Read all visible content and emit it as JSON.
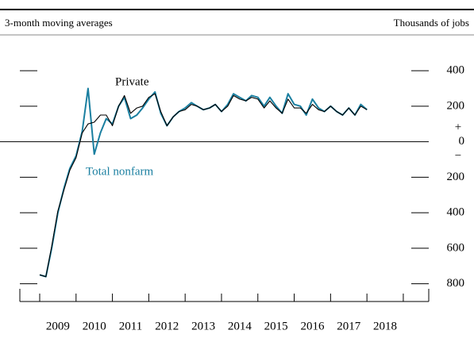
{
  "chart_data": {
    "type": "line",
    "subtitle": "3-month moving averages",
    "y_axis_label": "Thousands of jobs",
    "annotations": [
      "Private",
      "Total nonfarm"
    ],
    "sign_labels": [
      "+",
      "−"
    ],
    "x": [
      2009,
      2009.17,
      2009.33,
      2009.5,
      2009.67,
      2009.83,
      2010,
      2010.17,
      2010.33,
      2010.5,
      2010.67,
      2010.83,
      2011,
      2011.17,
      2011.33,
      2011.5,
      2011.67,
      2011.83,
      2012,
      2012.17,
      2012.33,
      2012.5,
      2012.67,
      2012.83,
      2013,
      2013.17,
      2013.33,
      2013.5,
      2013.67,
      2013.83,
      2014,
      2014.17,
      2014.33,
      2014.5,
      2014.67,
      2014.83,
      2015,
      2015.17,
      2015.33,
      2015.5,
      2015.67,
      2015.83,
      2016,
      2016.17,
      2016.33,
      2016.5,
      2016.67,
      2016.83,
      2017,
      2017.17,
      2017.33,
      2017.5,
      2017.67,
      2017.83,
      2018
    ],
    "series": [
      {
        "name": "Total nonfarm",
        "color": "#1a7fa0",
        "values": [
          -750,
          -760,
          -600,
          -400,
          -260,
          -150,
          -80,
          60,
          300,
          -70,
          50,
          130,
          100,
          200,
          250,
          130,
          150,
          190,
          240,
          280,
          160,
          90,
          140,
          170,
          190,
          220,
          200,
          180,
          190,
          210,
          170,
          210,
          270,
          250,
          230,
          260,
          250,
          200,
          250,
          200,
          160,
          270,
          210,
          200,
          150,
          240,
          190,
          170,
          200,
          170,
          150,
          190,
          150,
          210,
          180
        ]
      },
      {
        "name": "Private",
        "color": "#000000",
        "values": [
          -750,
          -760,
          -590,
          -390,
          -270,
          -160,
          -90,
          50,
          100,
          110,
          150,
          150,
          90,
          200,
          260,
          160,
          190,
          200,
          250,
          270,
          170,
          90,
          140,
          170,
          180,
          210,
          200,
          180,
          190,
          210,
          170,
          200,
          260,
          240,
          230,
          250,
          240,
          190,
          230,
          190,
          160,
          240,
          190,
          190,
          160,
          210,
          180,
          170,
          200,
          170,
          150,
          190,
          150,
          200,
          180
        ]
      }
    ],
    "xlim": [
      2008.454,
      2019.7
    ],
    "xticks": [
      2009,
      2010,
      2011,
      2012,
      2013,
      2014,
      2015,
      2016,
      2017,
      2018
    ],
    "ylim": [
      -900,
      530
    ],
    "yticks": [
      400,
      200,
      0,
      {
        "value": -200,
        "label": "200"
      },
      {
        "value": -400,
        "label": "400"
      },
      {
        "value": -600,
        "label": "600"
      },
      {
        "value": -800,
        "label": "800"
      }
    ]
  }
}
